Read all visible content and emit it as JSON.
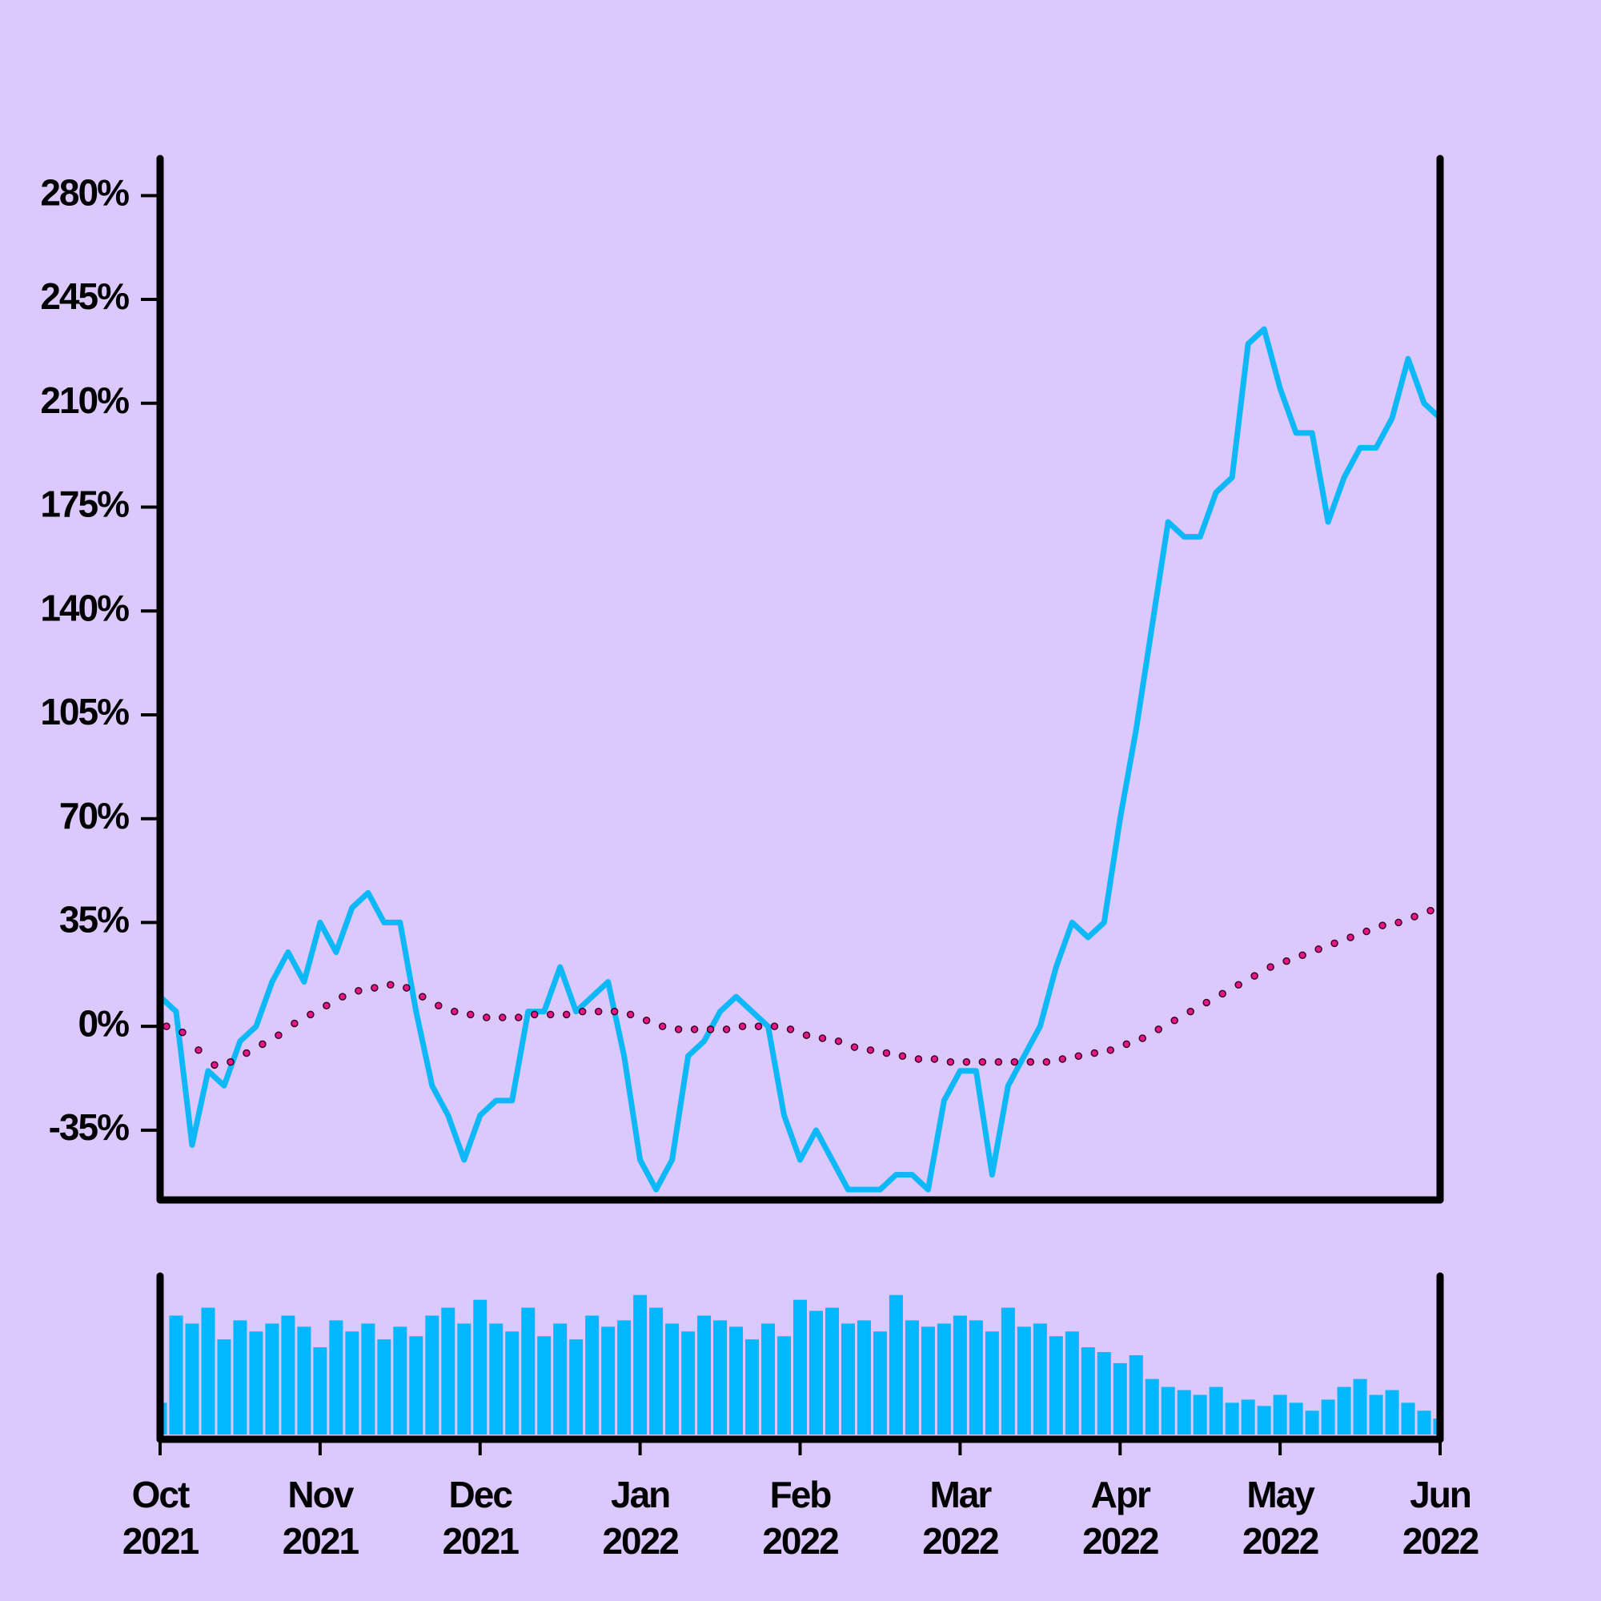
{
  "chart_data": {
    "type": "line",
    "categories": [
      "Oct\n2021",
      null,
      null,
      null,
      null,
      null,
      null,
      null,
      null,
      null,
      "Nov\n2021",
      null,
      null,
      null,
      null,
      null,
      null,
      null,
      null,
      null,
      "Dec\n2021",
      null,
      null,
      null,
      null,
      null,
      null,
      null,
      null,
      null,
      "Jan\n2022",
      null,
      null,
      null,
      null,
      null,
      null,
      null,
      null,
      null,
      "Feb\n2022",
      null,
      null,
      null,
      null,
      null,
      null,
      null,
      null,
      null,
      "Mar\n2022",
      null,
      null,
      null,
      null,
      null,
      null,
      null,
      null,
      null,
      "Apr\n2022",
      null,
      null,
      null,
      null,
      null,
      null,
      null,
      null,
      null,
      "May\n2022",
      null,
      null,
      null,
      null,
      null,
      null,
      null,
      null,
      null,
      "Jun\n2022"
    ],
    "series": [
      {
        "type": "line",
        "color": "#0cb8f8",
        "values": [
          10,
          5,
          -40,
          -15,
          -20,
          -5,
          0,
          15,
          25,
          15,
          35,
          25,
          40,
          45,
          35,
          35,
          5,
          -20,
          -30,
          -45,
          -30,
          -25,
          -25,
          5,
          5,
          20,
          5,
          10,
          15,
          -10,
          -45,
          -55,
          -45,
          -10,
          -5,
          5,
          10,
          5,
          0,
          -30,
          -45,
          -35,
          -45,
          -55,
          -55,
          -55,
          -50,
          -50,
          -55,
          -25,
          -15,
          -15,
          -50,
          -20,
          -10,
          0,
          20,
          35,
          30,
          35,
          70,
          100,
          135,
          170,
          165,
          165,
          180,
          185,
          230,
          235,
          215,
          200,
          200,
          170,
          185,
          195,
          195,
          205,
          225,
          210,
          205
        ]
      },
      {
        "type": "dots",
        "color": "#e8158c",
        "values": [
          0,
          -2,
          -8,
          -13,
          -12,
          -9,
          -6,
          -3,
          1,
          4,
          7,
          10,
          12,
          13,
          14,
          13,
          10,
          7,
          5,
          4,
          3,
          3,
          3,
          4,
          4,
          4,
          5,
          5,
          5,
          4,
          2,
          0,
          -1,
          -1,
          -1,
          -1,
          0,
          0,
          0,
          -1,
          -3,
          -4,
          -5,
          -7,
          -8,
          -9,
          -10,
          -11,
          -11,
          -12,
          -12,
          -12,
          -12,
          -12,
          -12,
          -12,
          -11,
          -10,
          -9,
          -8,
          -6,
          -4,
          -1,
          2,
          5,
          8,
          11,
          14,
          17,
          20,
          22,
          24,
          26,
          28,
          30,
          32,
          34,
          35,
          37,
          39,
          40
        ]
      },
      {
        "type": "bar",
        "axis": "y2",
        "color": "#00b8ff",
        "values": [
          20,
          75,
          70,
          80,
          60,
          72,
          65,
          70,
          75,
          68,
          55,
          72,
          65,
          70,
          60,
          68,
          62,
          75,
          80,
          70,
          85,
          70,
          65,
          80,
          62,
          70,
          60,
          75,
          68,
          72,
          88,
          80,
          70,
          65,
          75,
          72,
          68,
          60,
          70,
          62,
          85,
          78,
          80,
          70,
          72,
          65,
          88,
          72,
          68,
          70,
          75,
          72,
          65,
          80,
          68,
          70,
          62,
          65,
          55,
          52,
          45,
          50,
          35,
          30,
          28,
          25,
          30,
          20,
          22,
          18,
          25,
          20,
          15,
          22,
          30,
          35,
          25,
          28,
          20,
          15,
          10
        ]
      }
    ],
    "ylim": [
      -58.5,
      292.5
    ],
    "yticks": [
      {
        "value": -35,
        "label": "-35%"
      },
      {
        "value": 0,
        "label": "0%"
      },
      {
        "value": 35,
        "label": "35%"
      },
      {
        "value": 70,
        "label": "70%"
      },
      {
        "value": 105,
        "label": "105%"
      },
      {
        "value": 140,
        "label": "140%"
      },
      {
        "value": 175,
        "label": "175%"
      },
      {
        "value": 210,
        "label": "210%"
      },
      {
        "value": 245,
        "label": "245%"
      },
      {
        "value": 280,
        "label": "280%"
      }
    ],
    "y2lim": [
      0,
      100
    ]
  }
}
